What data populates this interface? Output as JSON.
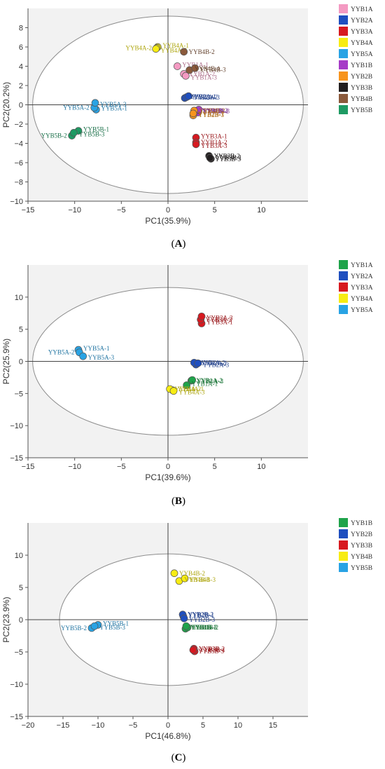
{
  "chart_data": [
    {
      "type": "scatter",
      "panel": "A",
      "xlabel": "PC1(35.9%)",
      "ylabel": "PC2(20.2%)",
      "xlim": [
        -15,
        15
      ],
      "ylim": [
        -10,
        10
      ],
      "xticks": [
        -15,
        -10,
        -5,
        0,
        5,
        10
      ],
      "yticks": [
        -10,
        -8,
        -6,
        -4,
        -2,
        0,
        2,
        4,
        6,
        8
      ],
      "legend_position": "right",
      "confidence_ellipse": {
        "cx": 0,
        "cy": 0,
        "rx": 14.5,
        "ry": 9.2
      },
      "series": [
        {
          "name": "YYB1A",
          "color": "#f49ac2",
          "points": [
            {
              "label": "YYB1A-1",
              "x": 1.0,
              "y": 4.0
            },
            {
              "label": "YYB1A-2",
              "x": 1.7,
              "y": 3.2
            },
            {
              "label": "YYB1A-3",
              "x": 1.9,
              "y": 3.0
            }
          ]
        },
        {
          "name": "YYB2A",
          "color": "#1f4fbf",
          "points": [
            {
              "label": "YYB2A-1",
              "x": 1.8,
              "y": 0.7
            },
            {
              "label": "YYB2A-2",
              "x": 2.0,
              "y": 0.8
            },
            {
              "label": "YYB2A-3",
              "x": 2.2,
              "y": 0.9
            }
          ]
        },
        {
          "name": "YYB3A",
          "color": "#d71920",
          "points": [
            {
              "label": "YYB3A-1",
              "x": 3.0,
              "y": -3.4
            },
            {
              "label": "YYB3A-2",
              "x": 3.0,
              "y": -3.9
            },
            {
              "label": "YYB3A-3",
              "x": 3.0,
              "y": -4.1
            }
          ]
        },
        {
          "name": "YYB4A",
          "color": "#f7ec13",
          "points": [
            {
              "label": "YYB4A-1",
              "x": -1.1,
              "y": 6.0
            },
            {
              "label": "YYB4A-2",
              "x": -1.2,
              "y": 5.9
            },
            {
              "label": "YYB4A-3",
              "x": -1.3,
              "y": 5.8
            }
          ]
        },
        {
          "name": "YYB5A",
          "color": "#29a3e4",
          "points": [
            {
              "label": "YYB5A-1",
              "x": -7.7,
              "y": -0.5
            },
            {
              "label": "YYB5A-2",
              "x": -7.9,
              "y": -0.3
            },
            {
              "label": "YYB5A-3",
              "x": -7.8,
              "y": 0.2
            }
          ]
        },
        {
          "name": "YYB1B",
          "color": "#a63cc7",
          "points": [
            {
              "label": "YYB1B-1",
              "x": 3.2,
              "y": -0.8
            },
            {
              "label": "YYB1B-2",
              "x": 3.1,
              "y": -0.6
            },
            {
              "label": "YYB1B-3",
              "x": 3.3,
              "y": -0.5
            }
          ]
        },
        {
          "name": "YYB2B",
          "color": "#f7941d",
          "points": [
            {
              "label": "YYB2B-1",
              "x": 2.7,
              "y": -1.1
            },
            {
              "label": "YYB2B-2",
              "x": 2.8,
              "y": -0.6
            },
            {
              "label": "YYB2B-3",
              "x": 2.7,
              "y": -0.9
            }
          ]
        },
        {
          "name": "YYB3B",
          "color": "#231f20",
          "points": [
            {
              "label": "YYB3B-1",
              "x": 4.6,
              "y": -5.6
            },
            {
              "label": "YYB3B-2",
              "x": 4.4,
              "y": -5.3
            },
            {
              "label": "YYB3B-3",
              "x": 4.5,
              "y": -5.5
            }
          ]
        },
        {
          "name": "YYB4B",
          "color": "#8b5a3c",
          "points": [
            {
              "label": "YYB4B-1",
              "x": 2.3,
              "y": 3.6
            },
            {
              "label": "YYB4B-2",
              "x": 1.7,
              "y": 5.5
            },
            {
              "label": "YYB4B-3",
              "x": 2.9,
              "y": 3.8
            }
          ]
        },
        {
          "name": "YYB5B",
          "color": "#1e9a63",
          "points": [
            {
              "label": "YYB5B-1",
              "x": -9.6,
              "y": -2.7
            },
            {
              "label": "YYB5B-2",
              "x": -10.3,
              "y": -3.2
            },
            {
              "label": "YYB5B-3",
              "x": -10.1,
              "y": -2.9
            }
          ]
        }
      ],
      "panel_label": "A"
    },
    {
      "type": "scatter",
      "panel": "B",
      "xlabel": "PC1(39.6%)",
      "ylabel": "PC2(25.9%)",
      "xlim": [
        -15,
        15
      ],
      "ylim": [
        -15,
        15
      ],
      "xticks": [
        -15,
        -10,
        -5,
        0,
        5,
        10
      ],
      "yticks": [
        -15,
        -10,
        -5,
        0,
        5,
        10
      ],
      "legend_position": "right",
      "confidence_ellipse": {
        "cx": 0,
        "cy": 0,
        "rx": 14.5,
        "ry": 11.5
      },
      "series": [
        {
          "name": "YYB1A",
          "color": "#1fa34a",
          "points": [
            {
              "label": "YYB1A-1",
              "x": 2.0,
              "y": -3.7
            },
            {
              "label": "YYB1A-2",
              "x": 2.5,
              "y": -3.0
            },
            {
              "label": "YYB1A-3",
              "x": 2.6,
              "y": -2.9
            }
          ]
        },
        {
          "name": "YYB2A",
          "color": "#1f4fbf",
          "points": [
            {
              "label": "YYB2A-1",
              "x": 3.0,
              "y": -0.5
            },
            {
              "label": "YYB2A-2",
              "x": 2.8,
              "y": -0.2
            },
            {
              "label": "YYB2A-3",
              "x": 3.2,
              "y": -0.3
            }
          ]
        },
        {
          "name": "YYB3A",
          "color": "#d71920",
          "points": [
            {
              "label": "YYB3A-1",
              "x": 3.6,
              "y": 5.9
            },
            {
              "label": "YYB3A-2",
              "x": 3.5,
              "y": 6.5
            },
            {
              "label": "YYB3A-3",
              "x": 3.6,
              "y": 7.0
            }
          ]
        },
        {
          "name": "YYB4A",
          "color": "#f7ec13",
          "points": [
            {
              "label": "YYB4A-1",
              "x": 0.5,
              "y": -4.5
            },
            {
              "label": "YYB4A-2",
              "x": 0.2,
              "y": -4.3
            },
            {
              "label": "YYB4A-3",
              "x": 0.6,
              "y": -4.6
            }
          ]
        },
        {
          "name": "YYB5A",
          "color": "#29a3e4",
          "points": [
            {
              "label": "YYB5A-1",
              "x": -9.6,
              "y": 1.8
            },
            {
              "label": "YYB5A-2",
              "x": -9.5,
              "y": 1.4
            },
            {
              "label": "YYB5A-3",
              "x": -9.1,
              "y": 0.8
            }
          ]
        }
      ],
      "panel_label": "B"
    },
    {
      "type": "scatter",
      "panel": "C",
      "xlabel": "PC1(46.8%)",
      "ylabel": "PC2(23.9%)",
      "xlim": [
        -20,
        20
      ],
      "ylim": [
        -15,
        15
      ],
      "xticks": [
        -20,
        -15,
        -10,
        -5,
        0,
        5,
        10,
        15
      ],
      "yticks": [
        -15,
        -10,
        -5,
        0,
        5,
        10
      ],
      "legend_position": "right",
      "confidence_ellipse": {
        "cx": 0,
        "cy": 0,
        "rx": 15.5,
        "ry": 10.2
      },
      "series": [
        {
          "name": "YYB1B",
          "color": "#1fa34a",
          "points": [
            {
              "label": "YYB1B-1",
              "x": 2.5,
              "y": -1.4
            },
            {
              "label": "YYB1B-2",
              "x": 2.8,
              "y": -1.2
            },
            {
              "label": "YYB1B-3",
              "x": 2.6,
              "y": -1.0
            }
          ]
        },
        {
          "name": "YYB2B",
          "color": "#1f4fbf",
          "points": [
            {
              "label": "YYB2B-1",
              "x": 2.2,
              "y": 0.5
            },
            {
              "label": "YYB2B-2",
              "x": 2.1,
              "y": 0.8
            },
            {
              "label": "YYB2B-3",
              "x": 2.3,
              "y": 0.2
            }
          ]
        },
        {
          "name": "YYB3B",
          "color": "#d71920",
          "points": [
            {
              "label": "YYB3B-1",
              "x": 3.8,
              "y": -4.9
            },
            {
              "label": "YYB3B-2",
              "x": 3.7,
              "y": -4.5
            },
            {
              "label": "YYB3B-3",
              "x": 3.6,
              "y": -4.7
            }
          ]
        },
        {
          "name": "YYB4B",
          "color": "#f7ec13",
          "points": [
            {
              "label": "YYB4B-1",
              "x": 1.6,
              "y": 6.0
            },
            {
              "label": "YYB4B-2",
              "x": 0.9,
              "y": 7.2
            },
            {
              "label": "YYB4B-3",
              "x": 2.4,
              "y": 6.4
            }
          ]
        },
        {
          "name": "YYB5B",
          "color": "#29a3e4",
          "points": [
            {
              "label": "YYB5B-1",
              "x": -10.0,
              "y": -0.8
            },
            {
              "label": "YYB5B-2",
              "x": -10.9,
              "y": -1.3
            },
            {
              "label": "YYB5B-3",
              "x": -10.5,
              "y": -1.0
            }
          ]
        }
      ],
      "panel_label": "C"
    }
  ]
}
